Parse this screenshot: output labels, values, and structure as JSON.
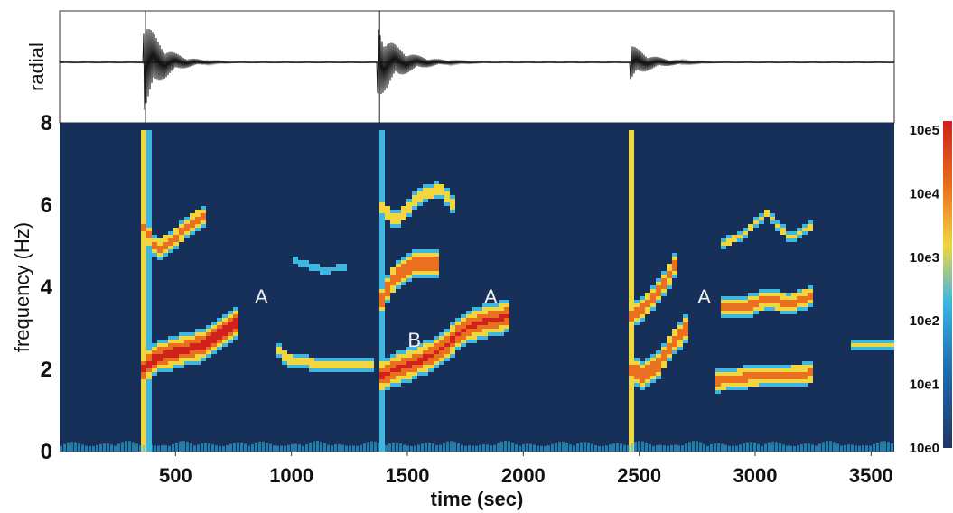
{
  "chart_data": {
    "type": "heatmap",
    "trace_label": "radial",
    "xlabel": "time (sec)",
    "ylabel": "frequency (Hz)",
    "xlim": [
      0,
      3600
    ],
    "ylim": [
      0,
      8
    ],
    "x_ticks": [
      500,
      1000,
      1500,
      2000,
      2500,
      3000,
      3500
    ],
    "y_ticks": [
      0,
      2,
      4,
      6,
      8
    ],
    "colorbar": {
      "scale": "log",
      "ticks": [
        "10e5",
        "10e4",
        "10e3",
        "10e2",
        "10e1",
        "10e0"
      ],
      "colors": [
        "#1e3566",
        "#1f6fb0",
        "#3fb6e0",
        "#f2d640",
        "#e8701e",
        "#d0211c"
      ]
    },
    "background_color": "#16305a",
    "annotations": [
      {
        "label": "A",
        "x": 870,
        "y": 3.6
      },
      {
        "label": "B",
        "x": 1530,
        "y": 2.55
      },
      {
        "label": "A",
        "x": 1860,
        "y": 3.6
      },
      {
        "label": "A",
        "x": 2780,
        "y": 3.6
      }
    ],
    "event_onsets": [
      360,
      1370,
      2460
    ],
    "ridges": [
      {
        "points": [
          [
            360,
            2.0
          ],
          [
            420,
            2.3
          ],
          [
            520,
            2.45
          ],
          [
            620,
            2.6
          ],
          [
            700,
            2.9
          ],
          [
            780,
            3.2
          ]
        ],
        "intensity": 0.95,
        "width": 0.35
      },
      {
        "points": [
          [
            360,
            5.5
          ],
          [
            420,
            4.9
          ],
          [
            500,
            5.2
          ],
          [
            580,
            5.6
          ],
          [
            640,
            5.8
          ]
        ],
        "intensity": 0.7,
        "width": 0.25
      },
      {
        "points": [
          [
            930,
            2.6
          ],
          [
            980,
            2.25
          ],
          [
            1080,
            2.15
          ],
          [
            1200,
            2.1
          ],
          [
            1350,
            2.1
          ]
        ],
        "intensity": 0.45,
        "width": 0.2
      },
      {
        "points": [
          [
            1000,
            4.7
          ],
          [
            1080,
            4.5
          ],
          [
            1150,
            4.4
          ],
          [
            1250,
            4.5
          ]
        ],
        "intensity": 0.3,
        "width": 0.12
      },
      {
        "points": [
          [
            1370,
            1.8
          ],
          [
            1450,
            2.0
          ],
          [
            1550,
            2.2
          ],
          [
            1650,
            2.5
          ],
          [
            1750,
            3.0
          ],
          [
            1850,
            3.2
          ],
          [
            1950,
            3.3
          ]
        ],
        "intensity": 0.9,
        "width": 0.35
      },
      {
        "points": [
          [
            1380,
            3.6
          ],
          [
            1450,
            4.3
          ],
          [
            1550,
            4.6
          ],
          [
            1640,
            4.6
          ]
        ],
        "intensity": 0.85,
        "width": 0.3
      },
      {
        "points": [
          [
            1380,
            6.0
          ],
          [
            1450,
            5.6
          ],
          [
            1550,
            6.2
          ],
          [
            1640,
            6.4
          ],
          [
            1700,
            6.0
          ]
        ],
        "intensity": 0.6,
        "width": 0.2
      },
      {
        "points": [
          [
            2460,
            2.0
          ],
          [
            2520,
            1.85
          ],
          [
            2580,
            2.1
          ],
          [
            2640,
            2.6
          ],
          [
            2700,
            3.0
          ]
        ],
        "intensity": 0.85,
        "width": 0.3
      },
      {
        "points": [
          [
            2460,
            3.3
          ],
          [
            2520,
            3.5
          ],
          [
            2600,
            4.0
          ],
          [
            2660,
            4.6
          ]
        ],
        "intensity": 0.75,
        "width": 0.28
      },
      {
        "points": [
          [
            2820,
            1.7
          ],
          [
            2950,
            1.8
          ],
          [
            3100,
            1.85
          ],
          [
            3250,
            1.9
          ]
        ],
        "intensity": 0.7,
        "width": 0.25
      },
      {
        "points": [
          [
            2860,
            3.5
          ],
          [
            2950,
            3.5
          ],
          [
            3050,
            3.7
          ],
          [
            3150,
            3.6
          ],
          [
            3250,
            3.8
          ]
        ],
        "intensity": 0.7,
        "width": 0.25
      },
      {
        "points": [
          [
            2850,
            5.0
          ],
          [
            2950,
            5.3
          ],
          [
            3050,
            5.8
          ],
          [
            3150,
            5.2
          ],
          [
            3250,
            5.5
          ]
        ],
        "intensity": 0.4,
        "width": 0.15
      },
      {
        "points": [
          [
            3420,
            2.6
          ],
          [
            3520,
            2.6
          ],
          [
            3600,
            2.6
          ]
        ],
        "intensity": 0.45,
        "width": 0.15
      }
    ],
    "waveform_bursts": [
      {
        "start": 360,
        "end": 800,
        "amplitude": 1.0
      },
      {
        "start": 1370,
        "end": 1900,
        "amplitude": 0.75
      },
      {
        "start": 2460,
        "end": 2900,
        "amplitude": 0.35
      }
    ]
  }
}
